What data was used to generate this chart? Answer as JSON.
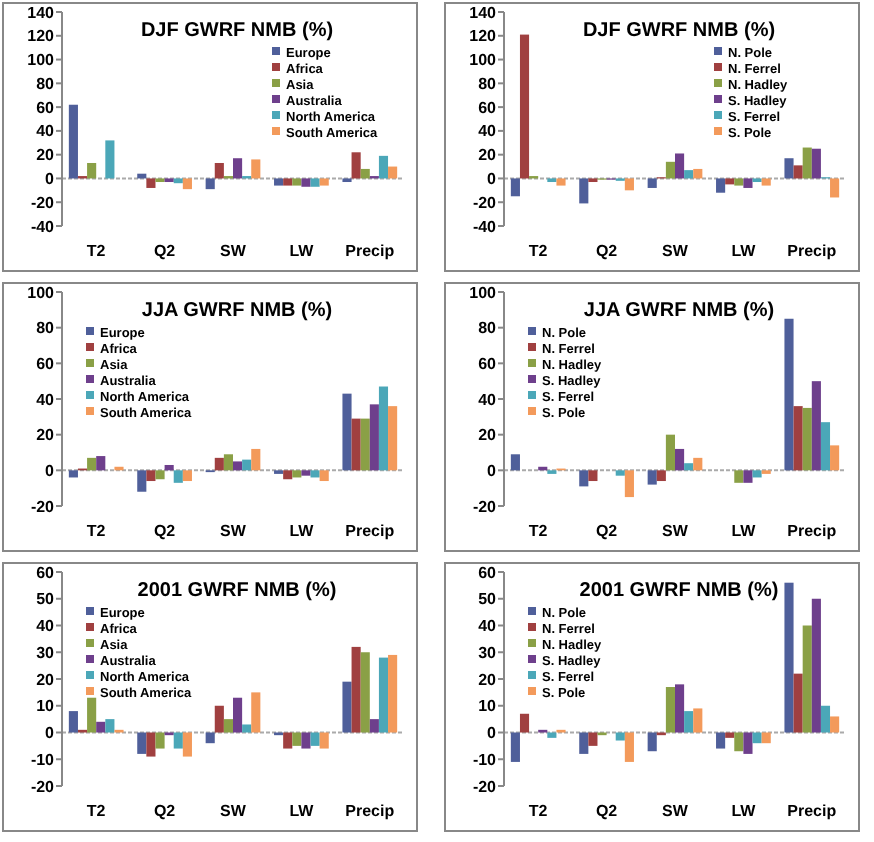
{
  "chart_data": [
    {
      "type": "bar",
      "title": "DJF GWRF NMB (%)",
      "categories": [
        "T2",
        "Q2",
        "SW",
        "LW",
        "Precip"
      ],
      "ylim": [
        -40,
        140
      ],
      "yticks": [
        -40,
        -20,
        0,
        20,
        40,
        60,
        80,
        100,
        120,
        140
      ],
      "legend": "top right",
      "series": [
        {
          "name": "Europe",
          "color": "#4f5f9a",
          "values": [
            62,
            4,
            -9,
            -6,
            -3
          ]
        },
        {
          "name": "Africa",
          "color": "#a04040",
          "values": [
            2,
            -8,
            13,
            -6,
            22
          ]
        },
        {
          "name": "Asia",
          "color": "#8aa046",
          "values": [
            13,
            -3,
            2,
            -6,
            8
          ]
        },
        {
          "name": "Australia",
          "color": "#6e3f8c",
          "values": [
            0,
            -3,
            17,
            -7,
            2
          ]
        },
        {
          "name": "North America",
          "color": "#4ba7b8",
          "values": [
            32,
            -4,
            2,
            -7,
            19
          ]
        },
        {
          "name": "South America",
          "color": "#f39a5b",
          "values": [
            0,
            -9,
            16,
            -6,
            10
          ]
        }
      ]
    },
    {
      "type": "bar",
      "title": "DJF GWRF NMB (%)",
      "categories": [
        "T2",
        "Q2",
        "SW",
        "LW",
        "Precip"
      ],
      "ylim": [
        -40,
        140
      ],
      "yticks": [
        -40,
        -20,
        0,
        20,
        40,
        60,
        80,
        100,
        120,
        140
      ],
      "legend": "top right",
      "series": [
        {
          "name": "N. Pole",
          "color": "#4f5f9a",
          "values": [
            -15,
            -21,
            -8,
            -12,
            17
          ]
        },
        {
          "name": "N. Ferrel",
          "color": "#a04040",
          "values": [
            121,
            -3,
            1,
            -5,
            11
          ]
        },
        {
          "name": "N. Hadley",
          "color": "#8aa046",
          "values": [
            2,
            -1,
            14,
            -6,
            26
          ]
        },
        {
          "name": "S. Hadley",
          "color": "#6e3f8c",
          "values": [
            0,
            -1,
            21,
            -8,
            25
          ]
        },
        {
          "name": "S. Ferrel",
          "color": "#4ba7b8",
          "values": [
            -3,
            -2,
            7,
            -3,
            1
          ]
        },
        {
          "name": "S. Pole",
          "color": "#f39a5b",
          "values": [
            -6,
            -10,
            8,
            -6,
            -16
          ]
        }
      ]
    },
    {
      "type": "bar",
      "title": "JJA GWRF NMB (%)",
      "categories": [
        "T2",
        "Q2",
        "SW",
        "LW",
        "Precip"
      ],
      "ylim": [
        -20,
        100
      ],
      "yticks": [
        -20,
        0,
        20,
        40,
        60,
        80,
        100
      ],
      "legend": "top left",
      "series": [
        {
          "name": "Europe",
          "color": "#4f5f9a",
          "values": [
            -4,
            -12,
            -1,
            -2,
            43
          ]
        },
        {
          "name": "Africa",
          "color": "#a04040",
          "values": [
            1,
            -6,
            7,
            -5,
            29
          ]
        },
        {
          "name": "Asia",
          "color": "#8aa046",
          "values": [
            7,
            -5,
            9,
            -4,
            29
          ]
        },
        {
          "name": "Australia",
          "color": "#6e3f8c",
          "values": [
            8,
            3,
            5,
            -3,
            37
          ]
        },
        {
          "name": "North America",
          "color": "#4ba7b8",
          "values": [
            0,
            -7,
            6,
            -4,
            47
          ]
        },
        {
          "name": "South America",
          "color": "#f39a5b",
          "values": [
            2,
            -6,
            12,
            -6,
            36
          ]
        }
      ]
    },
    {
      "type": "bar",
      "title": "JJA GWRF NMB (%)",
      "categories": [
        "T2",
        "Q2",
        "SW",
        "LW",
        "Precip"
      ],
      "ylim": [
        -20,
        100
      ],
      "yticks": [
        -20,
        0,
        20,
        40,
        60,
        80,
        100
      ],
      "legend": "top left",
      "series": [
        {
          "name": "N. Pole",
          "color": "#4f5f9a",
          "values": [
            9,
            -9,
            -8,
            0,
            85
          ]
        },
        {
          "name": "N. Ferrel",
          "color": "#a04040",
          "values": [
            0,
            -6,
            -6,
            0,
            36
          ]
        },
        {
          "name": "N. Hadley",
          "color": "#8aa046",
          "values": [
            0,
            0,
            20,
            -7,
            35
          ]
        },
        {
          "name": "S. Hadley",
          "color": "#6e3f8c",
          "values": [
            2,
            0,
            12,
            -7,
            50
          ]
        },
        {
          "name": "S. Ferrel",
          "color": "#4ba7b8",
          "values": [
            -2,
            -3,
            4,
            -4,
            27
          ]
        },
        {
          "name": "S. Pole",
          "color": "#f39a5b",
          "values": [
            1,
            -15,
            7,
            -2,
            14
          ]
        }
      ]
    },
    {
      "type": "bar",
      "title": "2001 GWRF NMB (%)",
      "categories": [
        "T2",
        "Q2",
        "SW",
        "LW",
        "Precip"
      ],
      "ylim": [
        -20,
        60
      ],
      "yticks": [
        -20,
        -10,
        0,
        10,
        20,
        30,
        40,
        50,
        60
      ],
      "legend": "top left",
      "series": [
        {
          "name": "Europe",
          "color": "#4f5f9a",
          "values": [
            8,
            -8,
            -4,
            -1,
            19
          ]
        },
        {
          "name": "Africa",
          "color": "#a04040",
          "values": [
            1,
            -9,
            10,
            -6,
            32
          ]
        },
        {
          "name": "Asia",
          "color": "#8aa046",
          "values": [
            13,
            -6,
            5,
            -5,
            30
          ]
        },
        {
          "name": "Australia",
          "color": "#6e3f8c",
          "values": [
            4,
            -1,
            13,
            -6,
            5
          ]
        },
        {
          "name": "North America",
          "color": "#4ba7b8",
          "values": [
            5,
            -6,
            3,
            -5,
            28
          ]
        },
        {
          "name": "South America",
          "color": "#f39a5b",
          "values": [
            1,
            -9,
            15,
            -6,
            29
          ]
        }
      ]
    },
    {
      "type": "bar",
      "title": "2001 GWRF NMB (%)",
      "categories": [
        "T2",
        "Q2",
        "SW",
        "LW",
        "Precip"
      ],
      "ylim": [
        -20,
        60
      ],
      "yticks": [
        -20,
        -10,
        0,
        10,
        20,
        30,
        40,
        50,
        60
      ],
      "legend": "top left",
      "series": [
        {
          "name": "N. Pole",
          "color": "#4f5f9a",
          "values": [
            -11,
            -8,
            -7,
            -6,
            56
          ]
        },
        {
          "name": "N. Ferrel",
          "color": "#a04040",
          "values": [
            7,
            -5,
            -1,
            -2,
            22
          ]
        },
        {
          "name": "N. Hadley",
          "color": "#8aa046",
          "values": [
            0,
            -1,
            17,
            -7,
            40
          ]
        },
        {
          "name": "S. Hadley",
          "color": "#6e3f8c",
          "values": [
            1,
            0,
            18,
            -8,
            50
          ]
        },
        {
          "name": "S. Ferrel",
          "color": "#4ba7b8",
          "values": [
            -2,
            -3,
            8,
            -4,
            10
          ]
        },
        {
          "name": "S. Pole",
          "color": "#f39a5b",
          "values": [
            1,
            -11,
            9,
            -4,
            6
          ]
        }
      ]
    }
  ]
}
